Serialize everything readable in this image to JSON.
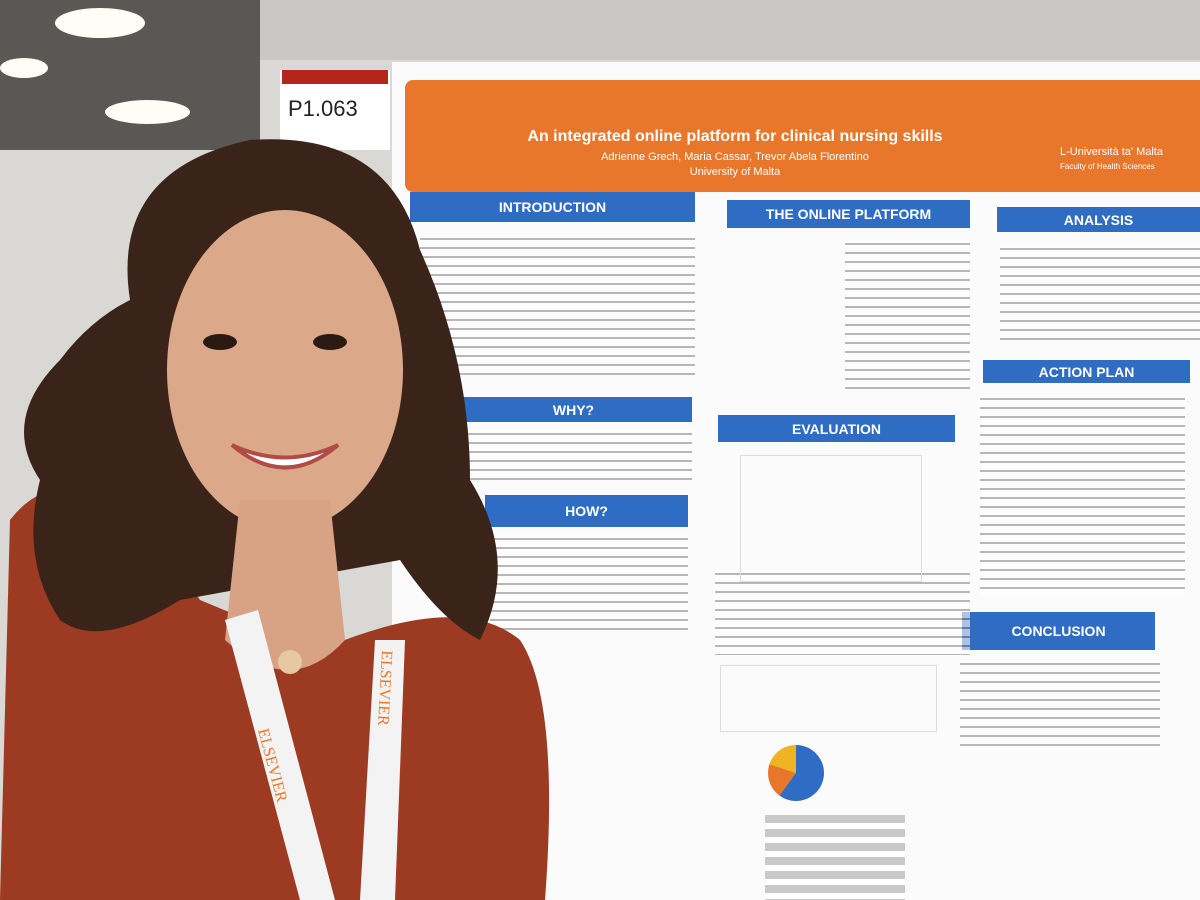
{
  "photo": {
    "booth_label": "P1.063",
    "poster": {
      "title": "An integrated online platform for clinical nursing skills",
      "authors": "Adrienne Grech, Maria Cassar, Trevor Abela Florentino",
      "affiliation": "University of Malta",
      "logo": {
        "name": "L-Università ta' Malta",
        "faculty": "Faculty of Health Sciences"
      },
      "sections": [
        "INTRODUCTION",
        "THE ONLINE PLATFORM",
        "ANALYSIS",
        "WHY?",
        "EVALUATION",
        "HOW?",
        "ACTION PLAN",
        "CONCLUSION"
      ]
    },
    "lanyard_text": "ELSEVIER"
  }
}
